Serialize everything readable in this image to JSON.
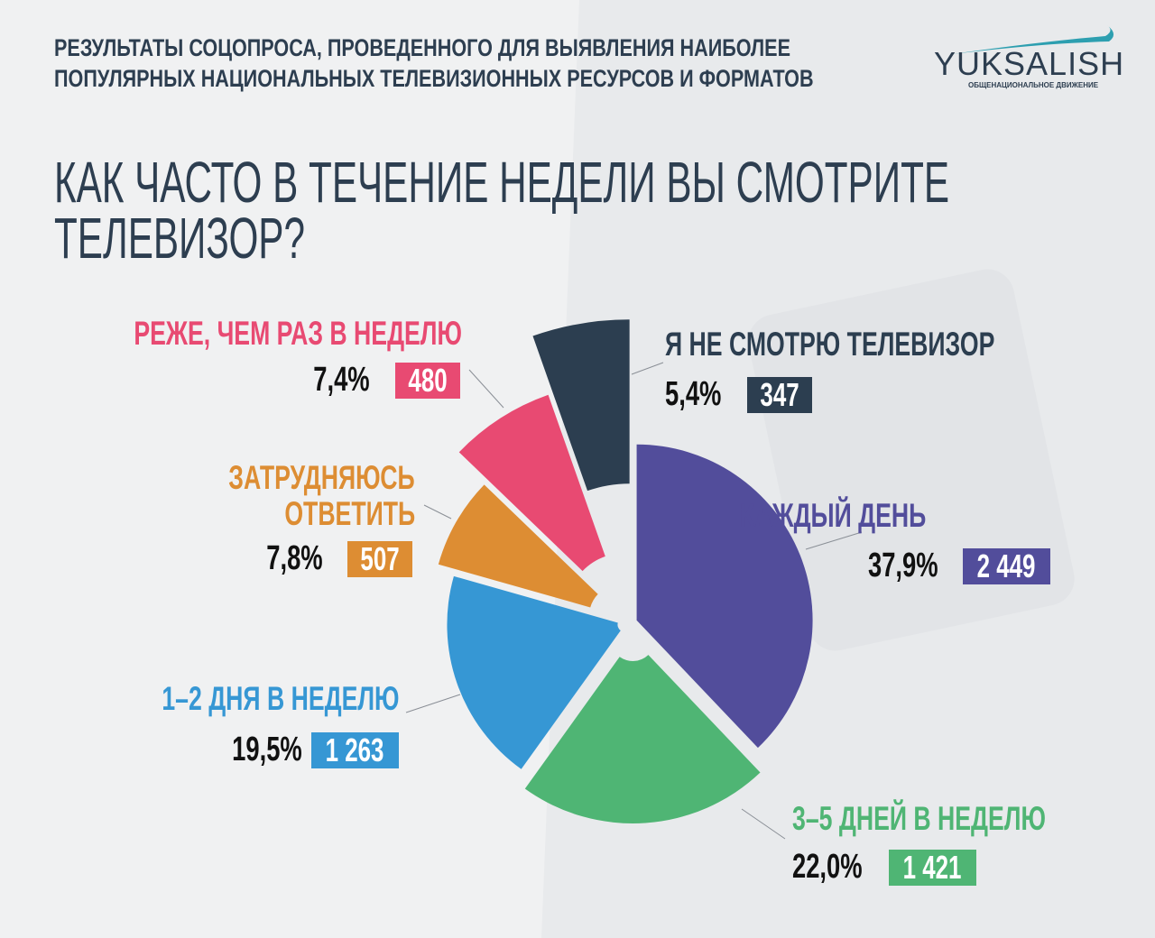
{
  "header": {
    "line1": "РЕЗУЛЬТАТЫ СОЦОПРОСА, ПРОВЕДЕННОГО ДЛЯ ВЫЯВЛЕНИЯ НАИБОЛЕЕ",
    "line2": "ПОПУЛЯРНЫХ НАЦИОНАЛЬНЫХ ТЕЛЕВИЗИОННЫХ РЕСУРСОВ И ФОРМАТОВ"
  },
  "logo": {
    "name": "YUKSALISH",
    "tagline": "ОБЩЕНАЦИОНАЛЬНОЕ ДВИЖЕНИЕ",
    "color": "#2d9fb0"
  },
  "chart_data": {
    "type": "pie",
    "title": "КАК ЧАСТО В ТЕЧЕНИЕ НЕДЕЛИ ВЫ СМОТРИТЕ ТЕЛЕВИЗОР?",
    "title_line1": "КАК ЧАСТО В ТЕЧЕНИЕ НЕДЕЛИ ВЫ СМОТРИТЕ",
    "title_line2": "ТЕЛЕВИЗОР?",
    "slices": [
      {
        "label": "КАЖДЫЙ ДЕНЬ",
        "percent": 37.9,
        "percent_text": "37,9%",
        "count": 2449,
        "count_text": "2 449",
        "color": "#524d9b"
      },
      {
        "label": "3–5 ДНЕЙ В НЕДЕЛЮ",
        "percent": 22.0,
        "percent_text": "22,0%",
        "count": 1421,
        "count_text": "1 421",
        "color": "#4fb574"
      },
      {
        "label": "1–2 ДНЯ В НЕДЕЛЮ",
        "percent": 19.5,
        "percent_text": "19,5%",
        "count": 1263,
        "count_text": "1 263",
        "color": "#3697d4"
      },
      {
        "label": "ЗАТРУДНЯЮСЬ ОТВЕТИТЬ",
        "label_line1": "ЗАТРУДНЯЮСЬ",
        "label_line2": "ОТВЕТИТЬ",
        "percent": 7.8,
        "percent_text": "7,8%",
        "count": 507,
        "count_text": "507",
        "color": "#dd8d33"
      },
      {
        "label": "РЕЖЕ, ЧЕМ РАЗ В НЕДЕЛЮ",
        "percent": 7.4,
        "percent_text": "7,4%",
        "count": 480,
        "count_text": "480",
        "color": "#e84a72"
      },
      {
        "label": "Я НЕ СМОТРЮ ТЕЛЕВИЗОР",
        "percent": 5.4,
        "percent_text": "5,4%",
        "count": 347,
        "count_text": "347",
        "color": "#2c3e50"
      }
    ]
  }
}
